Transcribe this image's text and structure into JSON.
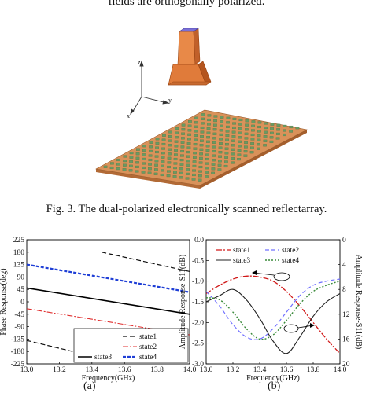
{
  "top_text": "fields are orthogonally polarized.",
  "figure": {
    "caption": "Fig. 3. The dual-polarized electronically scanned reflectarray.",
    "axis_labels": {
      "z": "z",
      "y": "y",
      "x": "x"
    },
    "colors": {
      "horn": "#e07b3a",
      "horn_dark": "#b4551e",
      "horn_top": "#7a6fd6",
      "board": "#d9925a",
      "cell": "#6a9a62"
    }
  },
  "subfig_labels": [
    "(a)",
    "(b)"
  ],
  "chart_data": [
    {
      "type": "line",
      "xlabel": "Frequency(GHz)",
      "ylabel": "Phase Response(deg)",
      "xlim": [
        13.0,
        14.0
      ],
      "ylim": [
        -225,
        225
      ],
      "xticks": [
        "13.0",
        "13.2",
        "13.4",
        "13.6",
        "13.8",
        "14.0"
      ],
      "yticks": [
        "225",
        "180",
        "135",
        "90",
        "45",
        "0",
        "-45",
        "-90",
        "-135",
        "-180",
        "-225"
      ],
      "legend_position": "bottom-right",
      "series": [
        {
          "name": "state1",
          "color": "#111111",
          "dash": "6,3",
          "width": 1.2,
          "segments": [
            [
              [
                13.0,
                -140
              ],
              [
                13.46,
                -205
              ]
            ],
            [
              [
                13.46,
                180
              ],
              [
                14.0,
                110
              ]
            ]
          ]
        },
        {
          "name": "state2",
          "color": "#e03030",
          "dash": "7,2,2,2",
          "width": 1.1,
          "segments": [
            [
              [
                13.0,
                -25
              ],
              [
                14.0,
                -120
              ]
            ]
          ]
        },
        {
          "name": "state3",
          "color": "#000000",
          "dash": "",
          "width": 1.6,
          "segments": [
            [
              [
                13.0,
                50
              ],
              [
                14.0,
                -45
              ]
            ]
          ]
        },
        {
          "name": "state4",
          "color": "#1f3fd6",
          "dash": "4,2",
          "width": 2.2,
          "segments": [
            [
              [
                13.0,
                135
              ],
              [
                14.0,
                35
              ]
            ]
          ]
        }
      ]
    },
    {
      "type": "line",
      "xlabel": "Frequency(GHz)",
      "ylabel": "Amplitude Response-S11(dB)",
      "ylabel_right": "Amplitude Response-S11(dB)",
      "xlim": [
        13.0,
        14.0
      ],
      "ylim": [
        -3.0,
        0.0
      ],
      "ylim_right": [
        20,
        0
      ],
      "xticks": [
        "13.0",
        "13.2",
        "13.4",
        "13.6",
        "13.8",
        "14.0"
      ],
      "yticks": [
        "0.0",
        "-0.5",
        "-1.0",
        "-1.5",
        "-2.0",
        "-2.5",
        "-3.0"
      ],
      "yticks_right": [
        "0",
        "4",
        "8",
        "12",
        "16",
        "20"
      ],
      "legend_position": "top",
      "series": [
        {
          "name": "state1",
          "color": "#d01818",
          "dash": "7,2,2,2",
          "width": 1.3,
          "points": [
            [
              13.0,
              -1.3
            ],
            [
              13.1,
              -1.1
            ],
            [
              13.2,
              -0.95
            ],
            [
              13.3,
              -0.88
            ],
            [
              13.4,
              -0.9
            ],
            [
              13.5,
              -1.0
            ],
            [
              13.6,
              -1.25
            ],
            [
              13.7,
              -1.6
            ],
            [
              13.8,
              -2.0
            ],
            [
              13.9,
              -2.4
            ],
            [
              14.0,
              -2.75
            ]
          ]
        },
        {
          "name": "state2",
          "color": "#7070ff",
          "dash": "5,3",
          "width": 1.2,
          "points": [
            [
              13.0,
              -1.25
            ],
            [
              13.1,
              -1.6
            ],
            [
              13.2,
              -2.05
            ],
            [
              13.3,
              -2.35
            ],
            [
              13.4,
              -2.4
            ],
            [
              13.5,
              -2.15
            ],
            [
              13.6,
              -1.75
            ],
            [
              13.7,
              -1.35
            ],
            [
              13.8,
              -1.1
            ],
            [
              13.9,
              -1.0
            ],
            [
              14.0,
              -0.95
            ]
          ]
        },
        {
          "name": "state3",
          "color": "#202020",
          "dash": "",
          "width": 1.1,
          "points": [
            [
              13.0,
              -1.5
            ],
            [
              13.1,
              -1.35
            ],
            [
              13.2,
              -1.2
            ],
            [
              13.3,
              -1.45
            ],
            [
              13.4,
              -1.9
            ],
            [
              13.5,
              -2.45
            ],
            [
              13.6,
              -2.75
            ],
            [
              13.7,
              -2.35
            ],
            [
              13.8,
              -1.85
            ],
            [
              13.9,
              -1.5
            ],
            [
              14.0,
              -1.3
            ]
          ]
        },
        {
          "name": "state4",
          "color": "#3a8a3a",
          "dash": "2,2",
          "width": 1.4,
          "points": [
            [
              13.0,
              -1.4
            ],
            [
              13.1,
              -1.45
            ],
            [
              13.2,
              -1.75
            ],
            [
              13.3,
              -2.15
            ],
            [
              13.4,
              -2.4
            ],
            [
              13.5,
              -2.3
            ],
            [
              13.6,
              -1.95
            ],
            [
              13.7,
              -1.55
            ],
            [
              13.8,
              -1.25
            ],
            [
              13.9,
              -1.1
            ],
            [
              14.0,
              -1.0
            ]
          ]
        }
      ]
    }
  ]
}
